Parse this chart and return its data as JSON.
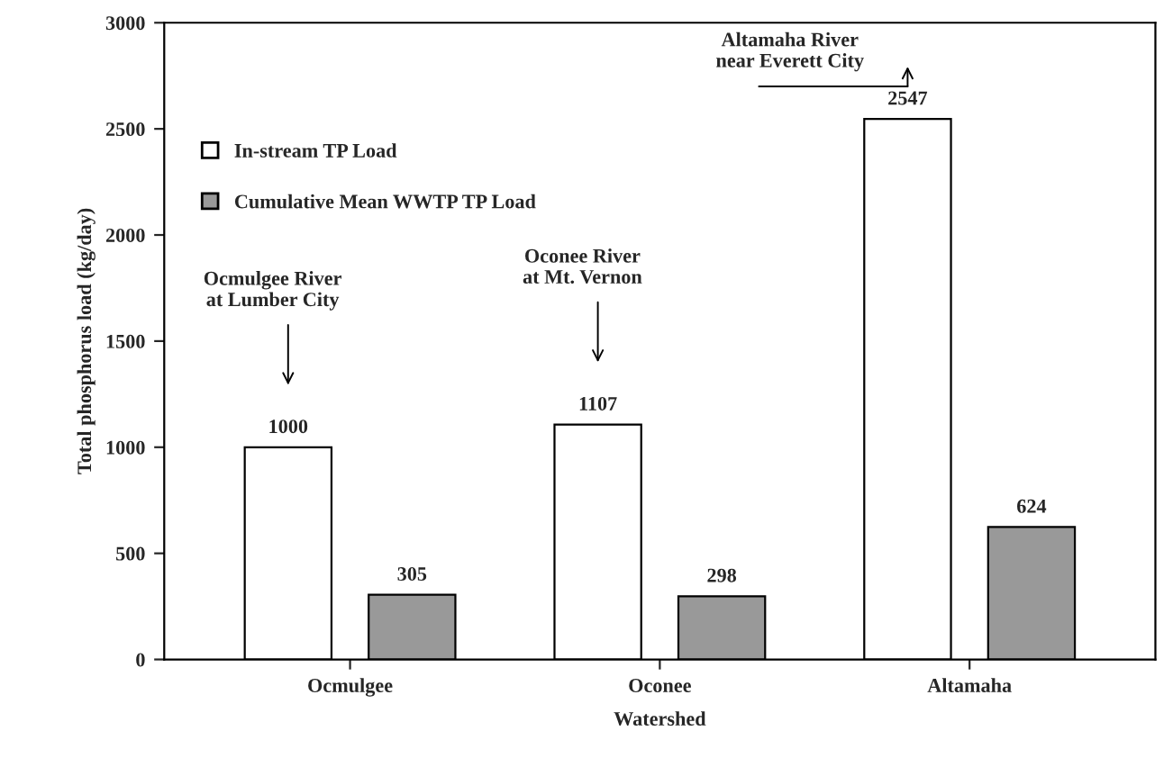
{
  "chart_data": {
    "type": "bar",
    "xlabel": "Watershed",
    "ylabel": "Total phosphorus load (kg/day)",
    "categories": [
      "Ocmulgee",
      "Oconee",
      "Altamaha"
    ],
    "series": [
      {
        "name": "In-stream TP Load",
        "color": "#ffffff",
        "values": [
          1000,
          1107,
          2547
        ]
      },
      {
        "name": "Cumulative Mean WWTP TP Load",
        "color": "#999999",
        "values": [
          305,
          298,
          624
        ]
      }
    ],
    "ylim": [
      0,
      3000
    ],
    "yticks": [
      0,
      500,
      1000,
      1500,
      2000,
      2500,
      3000
    ],
    "data_labels": true,
    "grid": false,
    "legend": "top left",
    "annotations": [
      "Ocmulgee River\nat Lumber City",
      "Oconee River\nat Mt. Vernon",
      "Altamaha River\nnear Everett City"
    ]
  }
}
